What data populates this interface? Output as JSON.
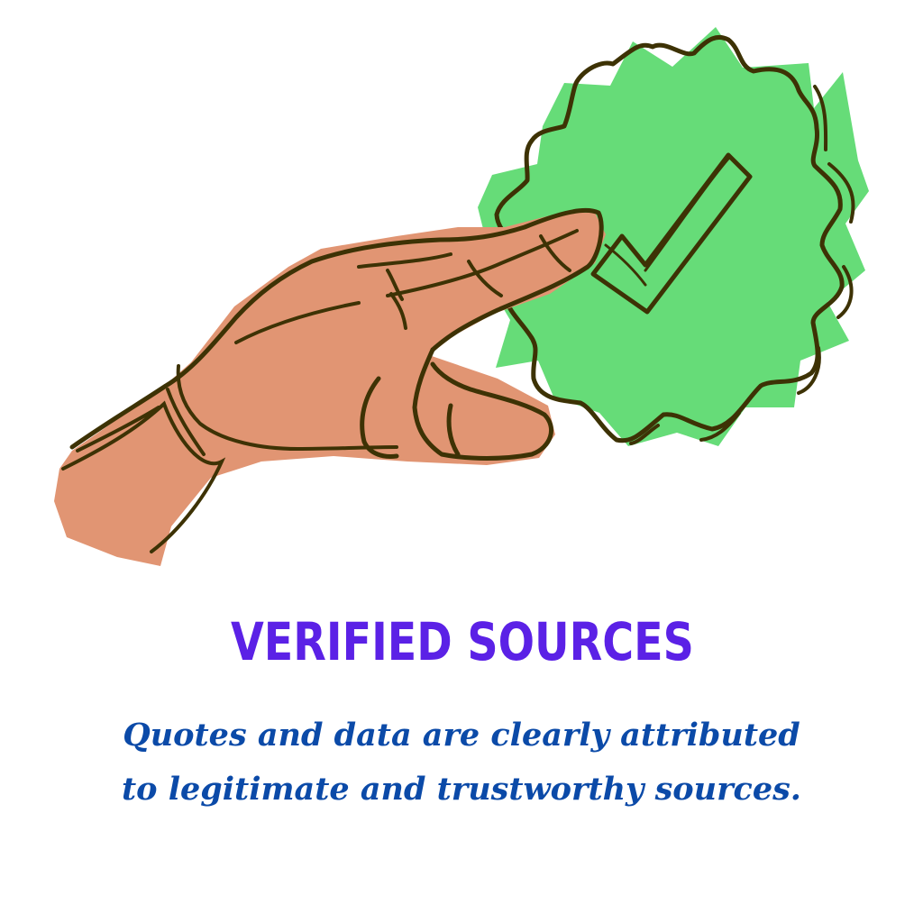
{
  "headline": "VERIFIED SOURCES",
  "description": "Quotes and data are clearly attributed to legitimate and trustworthy sources.",
  "illustration": {
    "badge_icon": "verified-checkmark-badge-icon",
    "hand_icon": "pointing-hand-icon"
  },
  "colors": {
    "badge_fill": "#66dc78",
    "skin_fill": "#e19573",
    "outline": "#3d3205",
    "headline": "#5b21e6",
    "description": "#0b4aa8"
  }
}
